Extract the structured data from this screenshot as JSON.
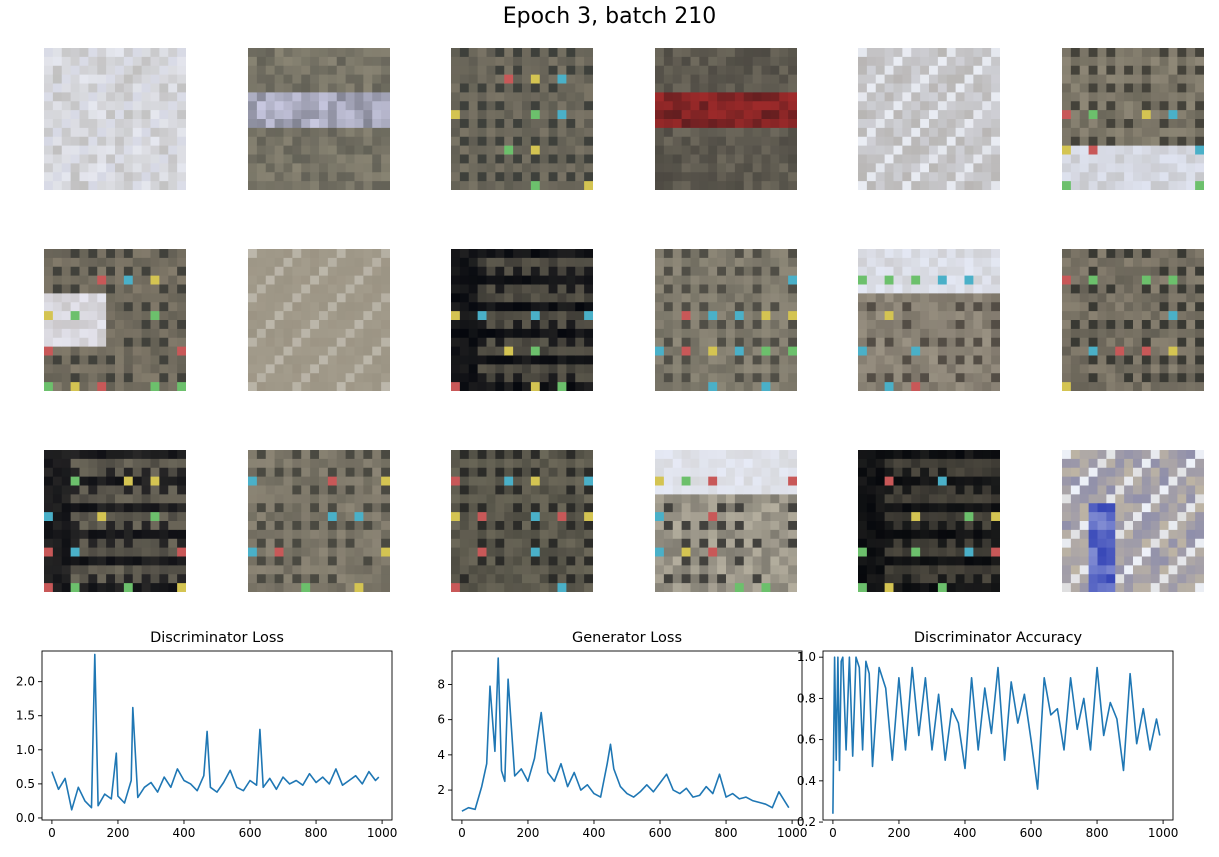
{
  "figure": {
    "title": "Epoch 3, batch 210",
    "sample_grid": {
      "rows": 3,
      "cols": 6,
      "tiles": [
        {
          "base": "#e6e8f0",
          "dark": "#7a7464",
          "mid": "#d6d8e4",
          "style": "blurry-light"
        },
        {
          "base": "#8a8574",
          "dark": "#1a1e20",
          "mid": "#c8c8e0",
          "style": "dark-red-top"
        },
        {
          "base": "#7b7566",
          "dark": "#2a2e2c",
          "mid": "#8e8a76",
          "style": "grid"
        },
        {
          "base": "#6f6a5d",
          "dark": "#0c0c10",
          "mid": "#9e2a2a",
          "style": "dark-red"
        },
        {
          "base": "#cfd0d6",
          "dark": "#8d8474",
          "mid": "#eaedf4",
          "style": "blurry-light"
        },
        {
          "base": "#8f8877",
          "dark": "#2b2b26",
          "mid": "#dfe3f0",
          "style": "grid-light-bottom"
        },
        {
          "base": "#847c6c",
          "dark": "#2a2d2a",
          "mid": "#e6e6f0",
          "style": "grid-white-left"
        },
        {
          "base": "#a39c8c",
          "dark": "#8c8474",
          "mid": "#bdb8ac",
          "style": "blurry"
        },
        {
          "base": "#5c584c",
          "dark": "#05070d",
          "mid": "#b03a3a",
          "style": "dark-grid"
        },
        {
          "base": "#908a7a",
          "dark": "#3a3a34",
          "mid": "#b8a8a4",
          "style": "grid"
        },
        {
          "base": "#9b9384",
          "dark": "#3b3630",
          "mid": "#e4e8f4",
          "style": "grid-light-top"
        },
        {
          "base": "#8a8272",
          "dark": "#1e201e",
          "mid": "#c8c4bc",
          "style": "grid"
        },
        {
          "base": "#6f6a5c",
          "dark": "#0c0d12",
          "mid": "#e8e8f0",
          "style": "dark-grid"
        },
        {
          "base": "#8d8676",
          "dark": "#34352f",
          "mid": "#c8b8c8",
          "style": "grid"
        },
        {
          "base": "#6c6859",
          "dark": "#151717",
          "mid": "#c06070",
          "style": "grid"
        },
        {
          "base": "#b4ae9e",
          "dark": "#1c1c1c",
          "mid": "#e6eaf6",
          "style": "grid-light-top"
        },
        {
          "base": "#4e4a40",
          "dark": "#06080c",
          "mid": "#9a8a70",
          "style": "dark-grid"
        },
        {
          "base": "#bdb4a4",
          "dark": "#3848b8",
          "mid": "#eef2fa",
          "style": "blurry-blue"
        }
      ]
    },
    "plots": [
      {
        "title": "Discriminator Loss",
        "key": "d_loss"
      },
      {
        "title": "Generator Loss",
        "key": "g_loss"
      },
      {
        "title": "Discriminator Accuracy",
        "key": "d_acc"
      }
    ],
    "line_color": "#1f77b4"
  },
  "chart_data": [
    {
      "type": "line",
      "title": "Discriminator Loss",
      "xlim": [
        -30,
        1030
      ],
      "ylim": [
        -0.03,
        2.45
      ],
      "xticks": [
        0,
        200,
        400,
        600,
        800,
        1000
      ],
      "yticks": [
        0.0,
        0.5,
        1.0,
        1.5,
        2.0
      ],
      "ytick_labels": [
        "0.0",
        "0.5",
        "1.0",
        "1.5",
        "2.0"
      ],
      "x": [
        0,
        20,
        40,
        60,
        80,
        100,
        120,
        130,
        140,
        160,
        180,
        195,
        200,
        220,
        240,
        245,
        260,
        280,
        300,
        320,
        340,
        360,
        380,
        400,
        420,
        440,
        460,
        470,
        480,
        500,
        520,
        540,
        560,
        580,
        600,
        620,
        630,
        640,
        660,
        680,
        700,
        720,
        740,
        760,
        780,
        800,
        820,
        840,
        860,
        880,
        900,
        920,
        940,
        960,
        980,
        990
      ],
      "y": [
        0.68,
        0.42,
        0.58,
        0.12,
        0.45,
        0.25,
        0.15,
        2.4,
        0.18,
        0.35,
        0.28,
        0.95,
        0.32,
        0.22,
        0.55,
        1.62,
        0.3,
        0.45,
        0.52,
        0.38,
        0.6,
        0.45,
        0.72,
        0.55,
        0.5,
        0.4,
        0.62,
        1.27,
        0.45,
        0.38,
        0.52,
        0.7,
        0.45,
        0.4,
        0.55,
        0.48,
        1.3,
        0.45,
        0.58,
        0.42,
        0.6,
        0.5,
        0.55,
        0.48,
        0.65,
        0.52,
        0.6,
        0.5,
        0.72,
        0.48,
        0.55,
        0.62,
        0.5,
        0.68,
        0.55,
        0.6
      ]
    },
    {
      "type": "line",
      "title": "Generator Loss",
      "xlim": [
        -30,
        1030
      ],
      "ylim": [
        0.3,
        9.9
      ],
      "xticks": [
        0,
        200,
        400,
        600,
        800,
        1000
      ],
      "yticks": [
        2,
        4,
        6,
        8
      ],
      "ytick_labels": [
        "2",
        "4",
        "6",
        "8"
      ],
      "x": [
        0,
        20,
        40,
        60,
        75,
        85,
        100,
        110,
        120,
        130,
        140,
        160,
        180,
        200,
        220,
        240,
        260,
        280,
        300,
        320,
        340,
        360,
        380,
        400,
        420,
        440,
        450,
        460,
        480,
        500,
        520,
        540,
        560,
        580,
        600,
        620,
        640,
        660,
        680,
        700,
        720,
        740,
        760,
        780,
        800,
        820,
        840,
        860,
        880,
        900,
        920,
        940,
        960,
        980,
        990
      ],
      "y": [
        0.8,
        1.0,
        0.9,
        2.2,
        3.5,
        7.9,
        4.2,
        9.5,
        3.1,
        2.5,
        8.3,
        2.8,
        3.2,
        2.5,
        3.8,
        6.4,
        3.0,
        2.5,
        3.5,
        2.2,
        3.0,
        2.0,
        2.3,
        1.8,
        1.6,
        3.5,
        4.6,
        3.2,
        2.2,
        1.8,
        1.6,
        1.9,
        2.3,
        1.9,
        2.4,
        2.9,
        2.0,
        1.8,
        2.1,
        1.6,
        1.7,
        2.2,
        1.8,
        2.9,
        1.6,
        1.8,
        1.5,
        1.6,
        1.4,
        1.3,
        1.2,
        1.0,
        1.9,
        1.3,
        1.0
      ]
    },
    {
      "type": "line",
      "title": "Discriminator Accuracy",
      "xlim": [
        -30,
        1030
      ],
      "ylim": [
        0.21,
        1.03
      ],
      "xticks": [
        0,
        200,
        400,
        600,
        800,
        1000
      ],
      "yticks": [
        0.2,
        0.4,
        0.6,
        0.8,
        1.0
      ],
      "ytick_labels": [
        "0.2",
        "0.4",
        "0.6",
        "0.8",
        "1.0"
      ],
      "x": [
        0,
        5,
        10,
        15,
        20,
        25,
        30,
        40,
        50,
        60,
        70,
        80,
        90,
        100,
        110,
        120,
        140,
        160,
        180,
        200,
        220,
        240,
        260,
        280,
        300,
        320,
        340,
        360,
        380,
        400,
        420,
        440,
        460,
        480,
        500,
        520,
        540,
        560,
        580,
        600,
        620,
        640,
        660,
        680,
        700,
        720,
        740,
        760,
        780,
        800,
        820,
        840,
        860,
        880,
        900,
        920,
        940,
        960,
        980,
        990
      ],
      "y": [
        0.24,
        1.0,
        0.5,
        1.0,
        0.45,
        0.98,
        1.0,
        0.55,
        1.0,
        0.52,
        1.0,
        0.95,
        0.55,
        0.98,
        0.92,
        0.47,
        0.95,
        0.85,
        0.5,
        0.9,
        0.55,
        0.95,
        0.62,
        0.9,
        0.55,
        0.82,
        0.5,
        0.75,
        0.68,
        0.46,
        0.9,
        0.55,
        0.85,
        0.63,
        0.95,
        0.5,
        0.88,
        0.68,
        0.82,
        0.6,
        0.36,
        0.9,
        0.72,
        0.75,
        0.55,
        0.9,
        0.65,
        0.8,
        0.55,
        0.95,
        0.62,
        0.78,
        0.7,
        0.45,
        0.92,
        0.58,
        0.75,
        0.55,
        0.7,
        0.62
      ]
    }
  ]
}
